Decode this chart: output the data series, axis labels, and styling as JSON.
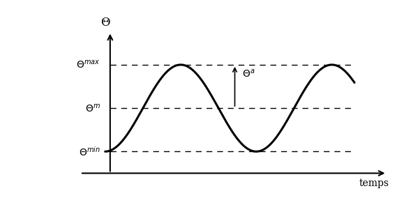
{
  "title": "",
  "ylabel": "Θ",
  "xlabel": "temps",
  "theta_max": 1.0,
  "theta_m": 0.5,
  "theta_min": 0.0,
  "curve_color": "#000000",
  "dashed_color": "#000000",
  "background_color": "#ffffff",
  "figsize": [
    5.79,
    3.07
  ],
  "dpi": 100
}
